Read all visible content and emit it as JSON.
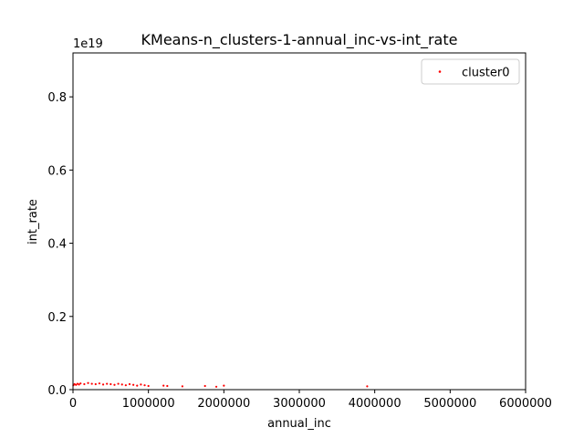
{
  "chart_data": {
    "type": "scatter",
    "title": "KMeans-n_clusters-1-annual_inc-vs-int_rate",
    "xlabel": "annual_inc",
    "ylabel": "int_rate",
    "xlim": [
      0,
      6000000
    ],
    "ylim": [
      0,
      9.2e+18
    ],
    "y_offset_label": "1e19",
    "x_ticks": [
      {
        "value": 0,
        "label": "0"
      },
      {
        "value": 1000000,
        "label": "1000000"
      },
      {
        "value": 2000000,
        "label": "2000000"
      },
      {
        "value": 3000000,
        "label": "3000000"
      },
      {
        "value": 4000000,
        "label": "4000000"
      },
      {
        "value": 5000000,
        "label": "5000000"
      },
      {
        "value": 6000000,
        "label": "6000000"
      }
    ],
    "y_ticks": [
      {
        "value": 0,
        "label": "0.0"
      },
      {
        "value": 2e+18,
        "label": "0.2"
      },
      {
        "value": 4e+18,
        "label": "0.4"
      },
      {
        "value": 6e+18,
        "label": "0.6"
      },
      {
        "value": 8e+18,
        "label": "0.8"
      }
    ],
    "grid": false,
    "legend_position": "top-right",
    "series": [
      {
        "name": "cluster0",
        "color": "#ff0000",
        "x": [
          5000,
          20000,
          40000,
          60000,
          80000,
          100000,
          150000,
          200000,
          250000,
          300000,
          350000,
          400000,
          450000,
          500000,
          550000,
          600000,
          650000,
          700000,
          750000,
          800000,
          850000,
          900000,
          950000,
          1000000,
          1200000,
          1250000,
          1450000,
          1750000,
          1900000,
          2000000,
          3900000
        ],
        "y": [
          1.2e+17,
          1.5e+17,
          1.3e+17,
          1.6e+17,
          1.4e+17,
          1.7e+17,
          1.5e+17,
          1.8e+17,
          1.6e+17,
          1.5e+17,
          1.7e+17,
          1.4e+17,
          1.6e+17,
          1.5e+17,
          1.3e+17,
          1.6e+17,
          1.4e+17,
          1.2e+17,
          1.5e+17,
          1.3e+17,
          1.1e+17,
          1.4e+17,
          1.2e+17,
          1e+17,
          1.1e+17,
          1e+17,
          9e+16,
          1e+17,
          8e+16,
          1.1e+17,
          9e+16
        ]
      }
    ]
  }
}
